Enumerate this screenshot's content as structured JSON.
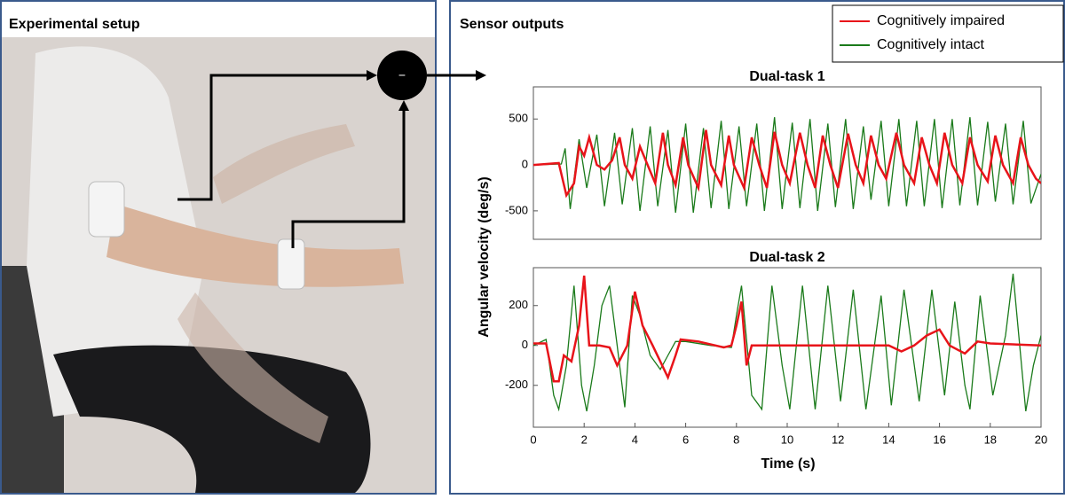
{
  "panels": {
    "left_title": "Experimental setup",
    "right_title": "Sensor outputs",
    "operator": "−",
    "x_label": "Time (s)",
    "y_label": "Angular velocity (deg/s)"
  },
  "chart_data": [
    {
      "type": "line",
      "title": "Dual-task 1",
      "legend": "upper right",
      "xlim": [
        0,
        20
      ],
      "ylim": [
        -810,
        850
      ],
      "yticks": [
        -500,
        0,
        500
      ],
      "series": [
        {
          "name": "Cognitively impaired",
          "color": "#e8141a",
          "x": [
            0,
            1.0,
            1.3,
            1.6,
            1.8,
            2.0,
            2.2,
            2.5,
            2.8,
            3.1,
            3.4,
            3.6,
            3.9,
            4.2,
            4.5,
            4.8,
            5.1,
            5.3,
            5.6,
            5.9,
            6.1,
            6.5,
            6.8,
            7.0,
            7.4,
            7.7,
            7.9,
            8.3,
            8.6,
            8.9,
            9.2,
            9.5,
            9.8,
            10.1,
            10.5,
            10.8,
            11.1,
            11.4,
            11.7,
            12.0,
            12.4,
            12.7,
            13.0,
            13.3,
            13.6,
            13.9,
            14.3,
            14.6,
            15.0,
            15.3,
            15.6,
            15.9,
            16.2,
            16.5,
            16.9,
            17.2,
            17.5,
            17.9,
            18.2,
            18.5,
            18.9,
            19.2,
            19.5,
            19.8,
            20
          ],
          "values": [
            0,
            20,
            -330,
            -200,
            200,
            100,
            300,
            0,
            -50,
            50,
            300,
            0,
            -150,
            200,
            0,
            -200,
            350,
            0,
            -220,
            300,
            0,
            -250,
            380,
            0,
            -220,
            320,
            0,
            -250,
            300,
            0,
            -250,
            360,
            0,
            -200,
            350,
            0,
            -250,
            320,
            0,
            -250,
            340,
            0,
            -200,
            320,
            0,
            -150,
            350,
            0,
            -200,
            300,
            0,
            -200,
            350,
            0,
            -200,
            300,
            0,
            -180,
            320,
            0,
            -200,
            300,
            0,
            -150,
            -200
          ]
        },
        {
          "name": "Cognitively intact",
          "color": "#1a7a1a",
          "x": [
            0,
            1.1,
            1.25,
            1.45,
            1.8,
            2.1,
            2.5,
            2.8,
            3.2,
            3.5,
            3.9,
            4.2,
            4.6,
            4.9,
            5.3,
            5.6,
            6.0,
            6.3,
            6.7,
            7.0,
            7.4,
            7.7,
            8.1,
            8.4,
            8.8,
            9.1,
            9.5,
            9.8,
            10.2,
            10.5,
            10.9,
            11.2,
            11.6,
            11.9,
            12.3,
            12.6,
            13.0,
            13.3,
            13.7,
            14.0,
            14.4,
            14.7,
            15.1,
            15.4,
            15.8,
            16.1,
            16.5,
            16.8,
            17.2,
            17.5,
            17.9,
            18.2,
            18.6,
            18.9,
            19.3,
            19.6,
            20
          ],
          "values": [
            0,
            10,
            180,
            -480,
            280,
            -250,
            330,
            -450,
            350,
            -430,
            400,
            -500,
            420,
            -450,
            380,
            -520,
            450,
            -520,
            400,
            -470,
            480,
            -480,
            420,
            -450,
            450,
            -500,
            520,
            -480,
            460,
            -470,
            500,
            -500,
            450,
            -460,
            500,
            -480,
            420,
            -380,
            480,
            -450,
            500,
            -450,
            480,
            -450,
            500,
            -470,
            500,
            -440,
            520,
            -440,
            470,
            -400,
            450,
            -430,
            480,
            -420,
            -100
          ]
        }
      ]
    },
    {
      "type": "line",
      "title": "Dual-task 2",
      "xlim": [
        0,
        20
      ],
      "ylim": [
        -410,
        390
      ],
      "yticks": [
        -200,
        0,
        200
      ],
      "xticks": [
        0,
        2,
        4,
        6,
        8,
        10,
        12,
        14,
        16,
        18,
        20
      ],
      "series": [
        {
          "color": "#e8141a",
          "x": [
            0,
            0.5,
            0.8,
            1.0,
            1.2,
            1.5,
            1.8,
            2.0,
            2.2,
            2.6,
            3.0,
            3.3,
            3.7,
            4.0,
            4.3,
            4.7,
            5.0,
            5.3,
            5.6,
            5.8,
            6.5,
            7.5,
            7.8,
            8.0,
            8.2,
            8.4,
            8.6,
            10,
            14,
            14.5,
            15,
            15.5,
            16,
            16.4,
            17,
            17.5,
            18,
            20
          ],
          "values": [
            10,
            10,
            -180,
            -180,
            -50,
            -80,
            100,
            350,
            0,
            0,
            -10,
            -100,
            0,
            270,
            100,
            0,
            -80,
            -160,
            -50,
            30,
            20,
            -10,
            0,
            100,
            220,
            -100,
            0,
            0,
            0,
            -30,
            0,
            50,
            80,
            0,
            -40,
            20,
            10,
            0
          ]
        },
        {
          "color": "#1a7a1a",
          "x": [
            0,
            0.5,
            0.8,
            1.0,
            1.3,
            1.6,
            1.9,
            2.1,
            2.4,
            2.7,
            3.0,
            3.3,
            3.6,
            3.9,
            4.2,
            4.6,
            5.0,
            5.3,
            5.6,
            6.0,
            7,
            7.8,
            8.0,
            8.2,
            8.6,
            9.0,
            9.4,
            9.8,
            10.1,
            10.6,
            11.1,
            11.6,
            12.1,
            12.6,
            13.1,
            13.7,
            14.1,
            14.6,
            15.2,
            15.7,
            16.2,
            16.6,
            17.0,
            17.2,
            17.6,
            18.1,
            18.6,
            18.9,
            19.4,
            19.7,
            20
          ],
          "values": [
            0,
            30,
            -250,
            -320,
            -100,
            300,
            -200,
            -330,
            -100,
            200,
            300,
            0,
            -310,
            250,
            150,
            -50,
            -120,
            -50,
            20,
            20,
            0,
            -10,
            150,
            300,
            -250,
            -320,
            300,
            -100,
            -320,
            300,
            -320,
            300,
            -280,
            280,
            -320,
            250,
            -300,
            280,
            -280,
            280,
            -250,
            220,
            -200,
            -320,
            250,
            -250,
            50,
            360,
            -330,
            -100,
            50
          ]
        }
      ]
    }
  ]
}
